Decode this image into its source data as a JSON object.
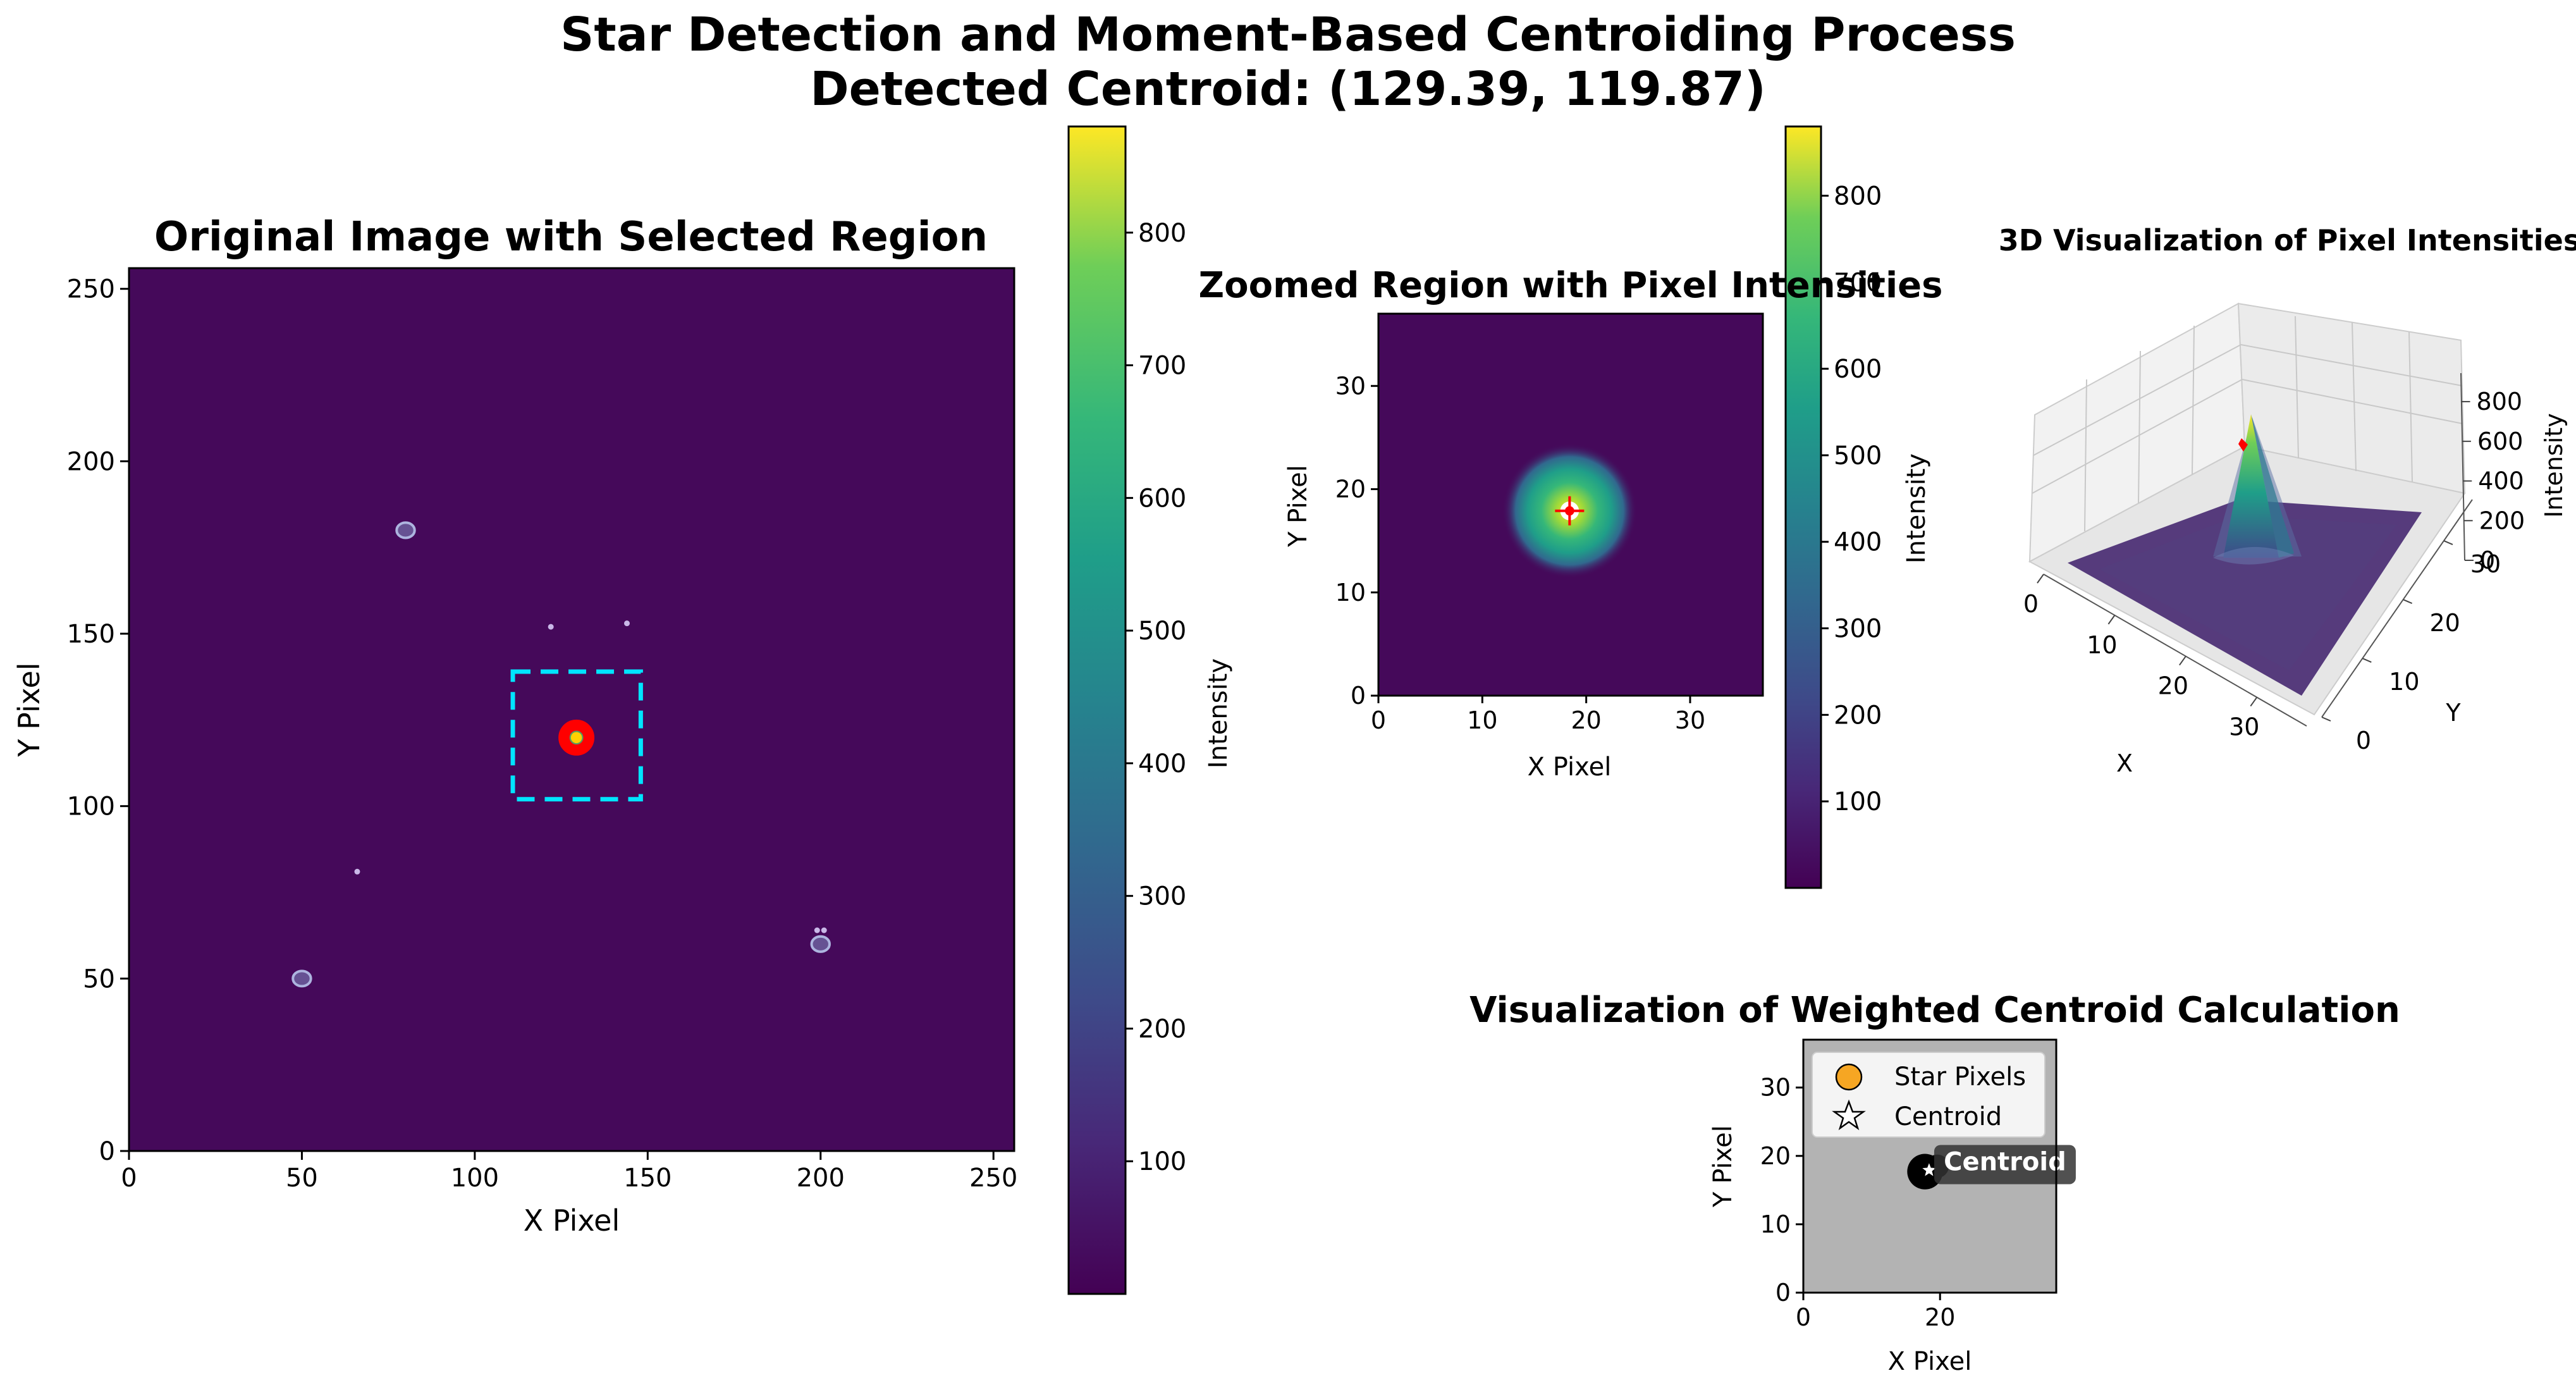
{
  "figure": {
    "title_line1": "Star Detection and Moment-Based Centroiding Process",
    "title_line2": "Detected Centroid: (129.39, 119.87)"
  },
  "colors": {
    "background_dark": "#45095a",
    "colorbar_stops": [
      "#440154",
      "#3b528b",
      "#21918c",
      "#5ec962",
      "#fde725"
    ],
    "roi_box": "#00e5ff",
    "centroid_ring_outer": "#ff0000",
    "centroid_ring_inner": "#ffd000",
    "contour": "#b9c7ee",
    "gray_bg": "#b3b3b3",
    "legend_marker": "#f6a623"
  },
  "chart_data": [
    {
      "type": "heatmap",
      "id": "original",
      "title": "Original Image with Selected Region",
      "xlabel": "X Pixel",
      "ylabel": "Y Pixel",
      "xlim": [
        0,
        256
      ],
      "ylim": [
        0,
        256
      ],
      "xticks": [
        0,
        50,
        100,
        150,
        200,
        250
      ],
      "yticks": [
        0,
        50,
        100,
        150,
        200,
        250
      ],
      "stars": [
        {
          "x": 129.39,
          "y": 119.87,
          "peak": 880
        },
        {
          "x": 80,
          "y": 180,
          "peak": 120
        },
        {
          "x": 50,
          "y": 50,
          "peak": 120
        },
        {
          "x": 200,
          "y": 60,
          "peak": 120
        }
      ],
      "faint_points": [
        {
          "x": 122,
          "y": 152
        },
        {
          "x": 144,
          "y": 153
        },
        {
          "x": 66,
          "y": 81
        },
        {
          "x": 199,
          "y": 64
        },
        {
          "x": 201,
          "y": 64
        }
      ],
      "selected_region": {
        "x0": 111,
        "y0": 102,
        "x1": 148,
        "y1": 139
      },
      "colorbar": {
        "label": "Intensity",
        "min": 0,
        "max": 880,
        "ticks": [
          100,
          200,
          300,
          400,
          500,
          600,
          700,
          800
        ]
      }
    },
    {
      "type": "heatmap",
      "id": "zoomed",
      "title": "Zoomed Region with Pixel Intensities",
      "xlabel": "X Pixel",
      "ylabel": "Y Pixel",
      "xlim": [
        0,
        37
      ],
      "ylim": [
        0,
        37
      ],
      "xticks": [
        0,
        10,
        20,
        30
      ],
      "yticks": [
        0,
        10,
        20,
        30
      ],
      "centroid": {
        "x": 18.4,
        "y": 17.9
      },
      "colorbar": {
        "label": "Intensity",
        "min": 0,
        "max": 880,
        "ticks": [
          100,
          200,
          300,
          400,
          500,
          600,
          700,
          800
        ]
      }
    },
    {
      "type": "surface",
      "id": "surface3d",
      "title": "3D Visualization of Pixel Intensities",
      "xlabel": "X",
      "ylabel": "Y",
      "zlabel": "Intensity",
      "xticks": [
        0,
        10,
        20,
        30
      ],
      "yticks": [
        0,
        10,
        20,
        30
      ],
      "zticks": [
        0,
        200,
        400,
        600,
        800
      ],
      "zlim": [
        0,
        880
      ]
    },
    {
      "type": "scatter",
      "id": "weighted",
      "title": "Visualization of Weighted Centroid Calculation",
      "xlabel": "X Pixel",
      "ylabel": "Y Pixel",
      "xlim": [
        0,
        37
      ],
      "ylim": [
        0,
        37
      ],
      "xticks": [
        0,
        20
      ],
      "yticks": [
        0,
        10,
        20,
        30
      ],
      "centroid": {
        "x": 18.4,
        "y": 17.9
      },
      "annotation": "Centroid",
      "legend": [
        "Star Pixels",
        "Centroid"
      ],
      "legend_position": "upper-left"
    }
  ]
}
